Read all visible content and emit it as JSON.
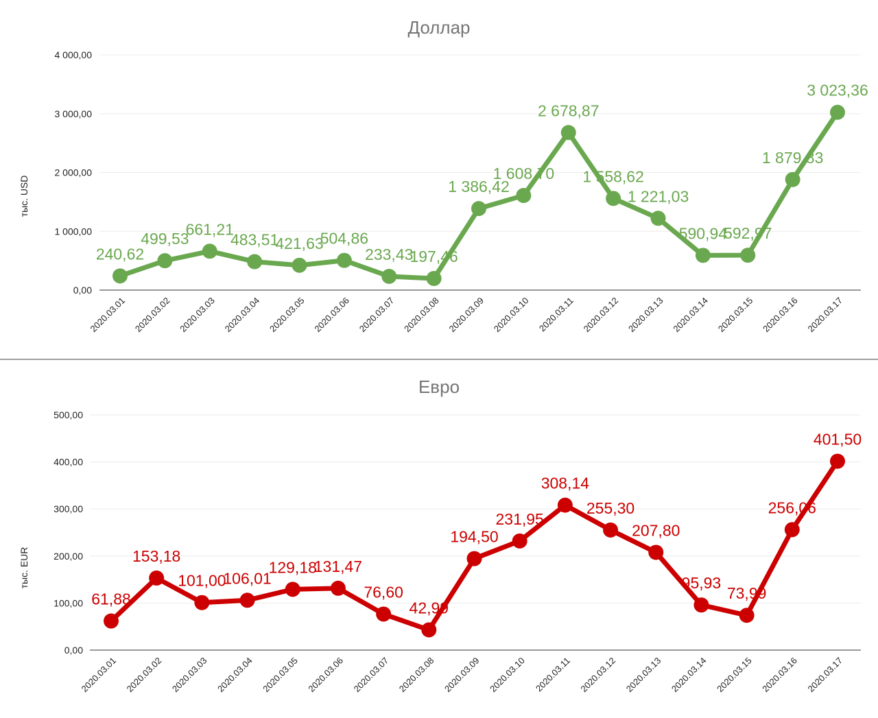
{
  "chart_data": [
    {
      "type": "line",
      "title": "Доллар",
      "ylabel": "тыс. USD",
      "xlabel": "",
      "ylim": [
        0,
        4000
      ],
      "yticks": [
        0,
        1000,
        2000,
        3000,
        4000
      ],
      "ytick_labels": [
        "0,00",
        "1 000,00",
        "2 000,00",
        "3 000,00",
        "4 000,00"
      ],
      "grid": true,
      "color": "#6aa84f",
      "categories": [
        "2020.03.01",
        "2020.03.02",
        "2020.03.03",
        "2020.03.04",
        "2020.03.05",
        "2020.03.06",
        "2020.03.07",
        "2020.03.08",
        "2020.03.09",
        "2020.03.10",
        "2020.03.11",
        "2020.03.12",
        "2020.03.13",
        "2020.03.14",
        "2020.03.15",
        "2020.03.16",
        "2020.03.17"
      ],
      "values": [
        240.62,
        499.53,
        661.21,
        483.51,
        421.63,
        504.86,
        233.43,
        197.46,
        1386.42,
        1608.7,
        2678.87,
        1558.62,
        1221.03,
        590.94,
        592.97,
        1879.83,
        3023.36
      ],
      "value_labels": [
        "240,62",
        "499,53",
        "661,21",
        "483,51",
        "421,63",
        "504,86",
        "233,43",
        "197,46",
        "1 386,42",
        "1 608,70",
        "2 678,87",
        "1 558,62",
        "1 221,03",
        "590,94",
        "592,97",
        "1 879,83",
        "3 023,36"
      ]
    },
    {
      "type": "line",
      "title": "Евро",
      "ylabel": "тыс. EUR",
      "xlabel": "",
      "ylim": [
        0,
        500
      ],
      "yticks": [
        0,
        100,
        200,
        300,
        400,
        500
      ],
      "ytick_labels": [
        "0,00",
        "100,00",
        "200,00",
        "300,00",
        "400,00",
        "500,00"
      ],
      "grid": true,
      "color": "#cc0000",
      "categories": [
        "2020.03.01",
        "2020.03.02",
        "2020.03.03",
        "2020.03.04",
        "2020.03.05",
        "2020.03.06",
        "2020.03.07",
        "2020.03.08",
        "2020.03.09",
        "2020.03.10",
        "2020.03.11",
        "2020.03.12",
        "2020.03.13",
        "2020.03.14",
        "2020.03.15",
        "2020.03.16",
        "2020.03.17"
      ],
      "values": [
        61.88,
        153.18,
        101.0,
        106.01,
        129.18,
        131.47,
        76.6,
        42.99,
        194.5,
        231.95,
        308.14,
        255.3,
        207.8,
        95.93,
        73.99,
        256.06,
        401.5
      ],
      "value_labels": [
        "61,88",
        "153,18",
        "101,00",
        "106,01",
        "129,18",
        "131,47",
        "76,60",
        "42,99",
        "194,50",
        "231,95",
        "308,14",
        "255,30",
        "207,80",
        "95,93",
        "73,99",
        "256,06",
        "401,50"
      ]
    }
  ]
}
